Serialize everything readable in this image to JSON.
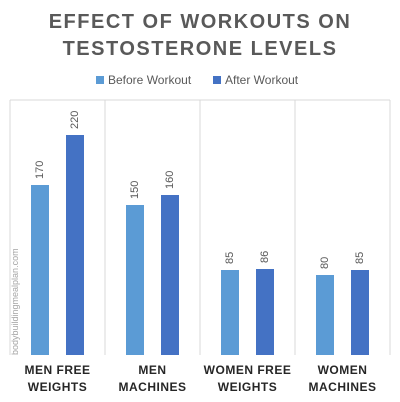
{
  "chart_data": {
    "type": "bar",
    "title": [
      "EFFECT OF WORKOUTS ON",
      "TESTOSTERONE LEVELS"
    ],
    "categories": [
      "MEN FREE WEIGHTS",
      "MEN MACHINES",
      "WOMEN FREE WEIGHTS",
      "WOMEN MACHINES"
    ],
    "series": [
      {
        "name": "Before Workout",
        "color": "#5b9bd5",
        "values": [
          170,
          150,
          85,
          80
        ]
      },
      {
        "name": "After Workout",
        "color": "#4472c4",
        "values": [
          220,
          160,
          86,
          85
        ]
      }
    ],
    "ylim": [
      0,
      250
    ],
    "watermark": "bodybuildingmealplan.com"
  }
}
